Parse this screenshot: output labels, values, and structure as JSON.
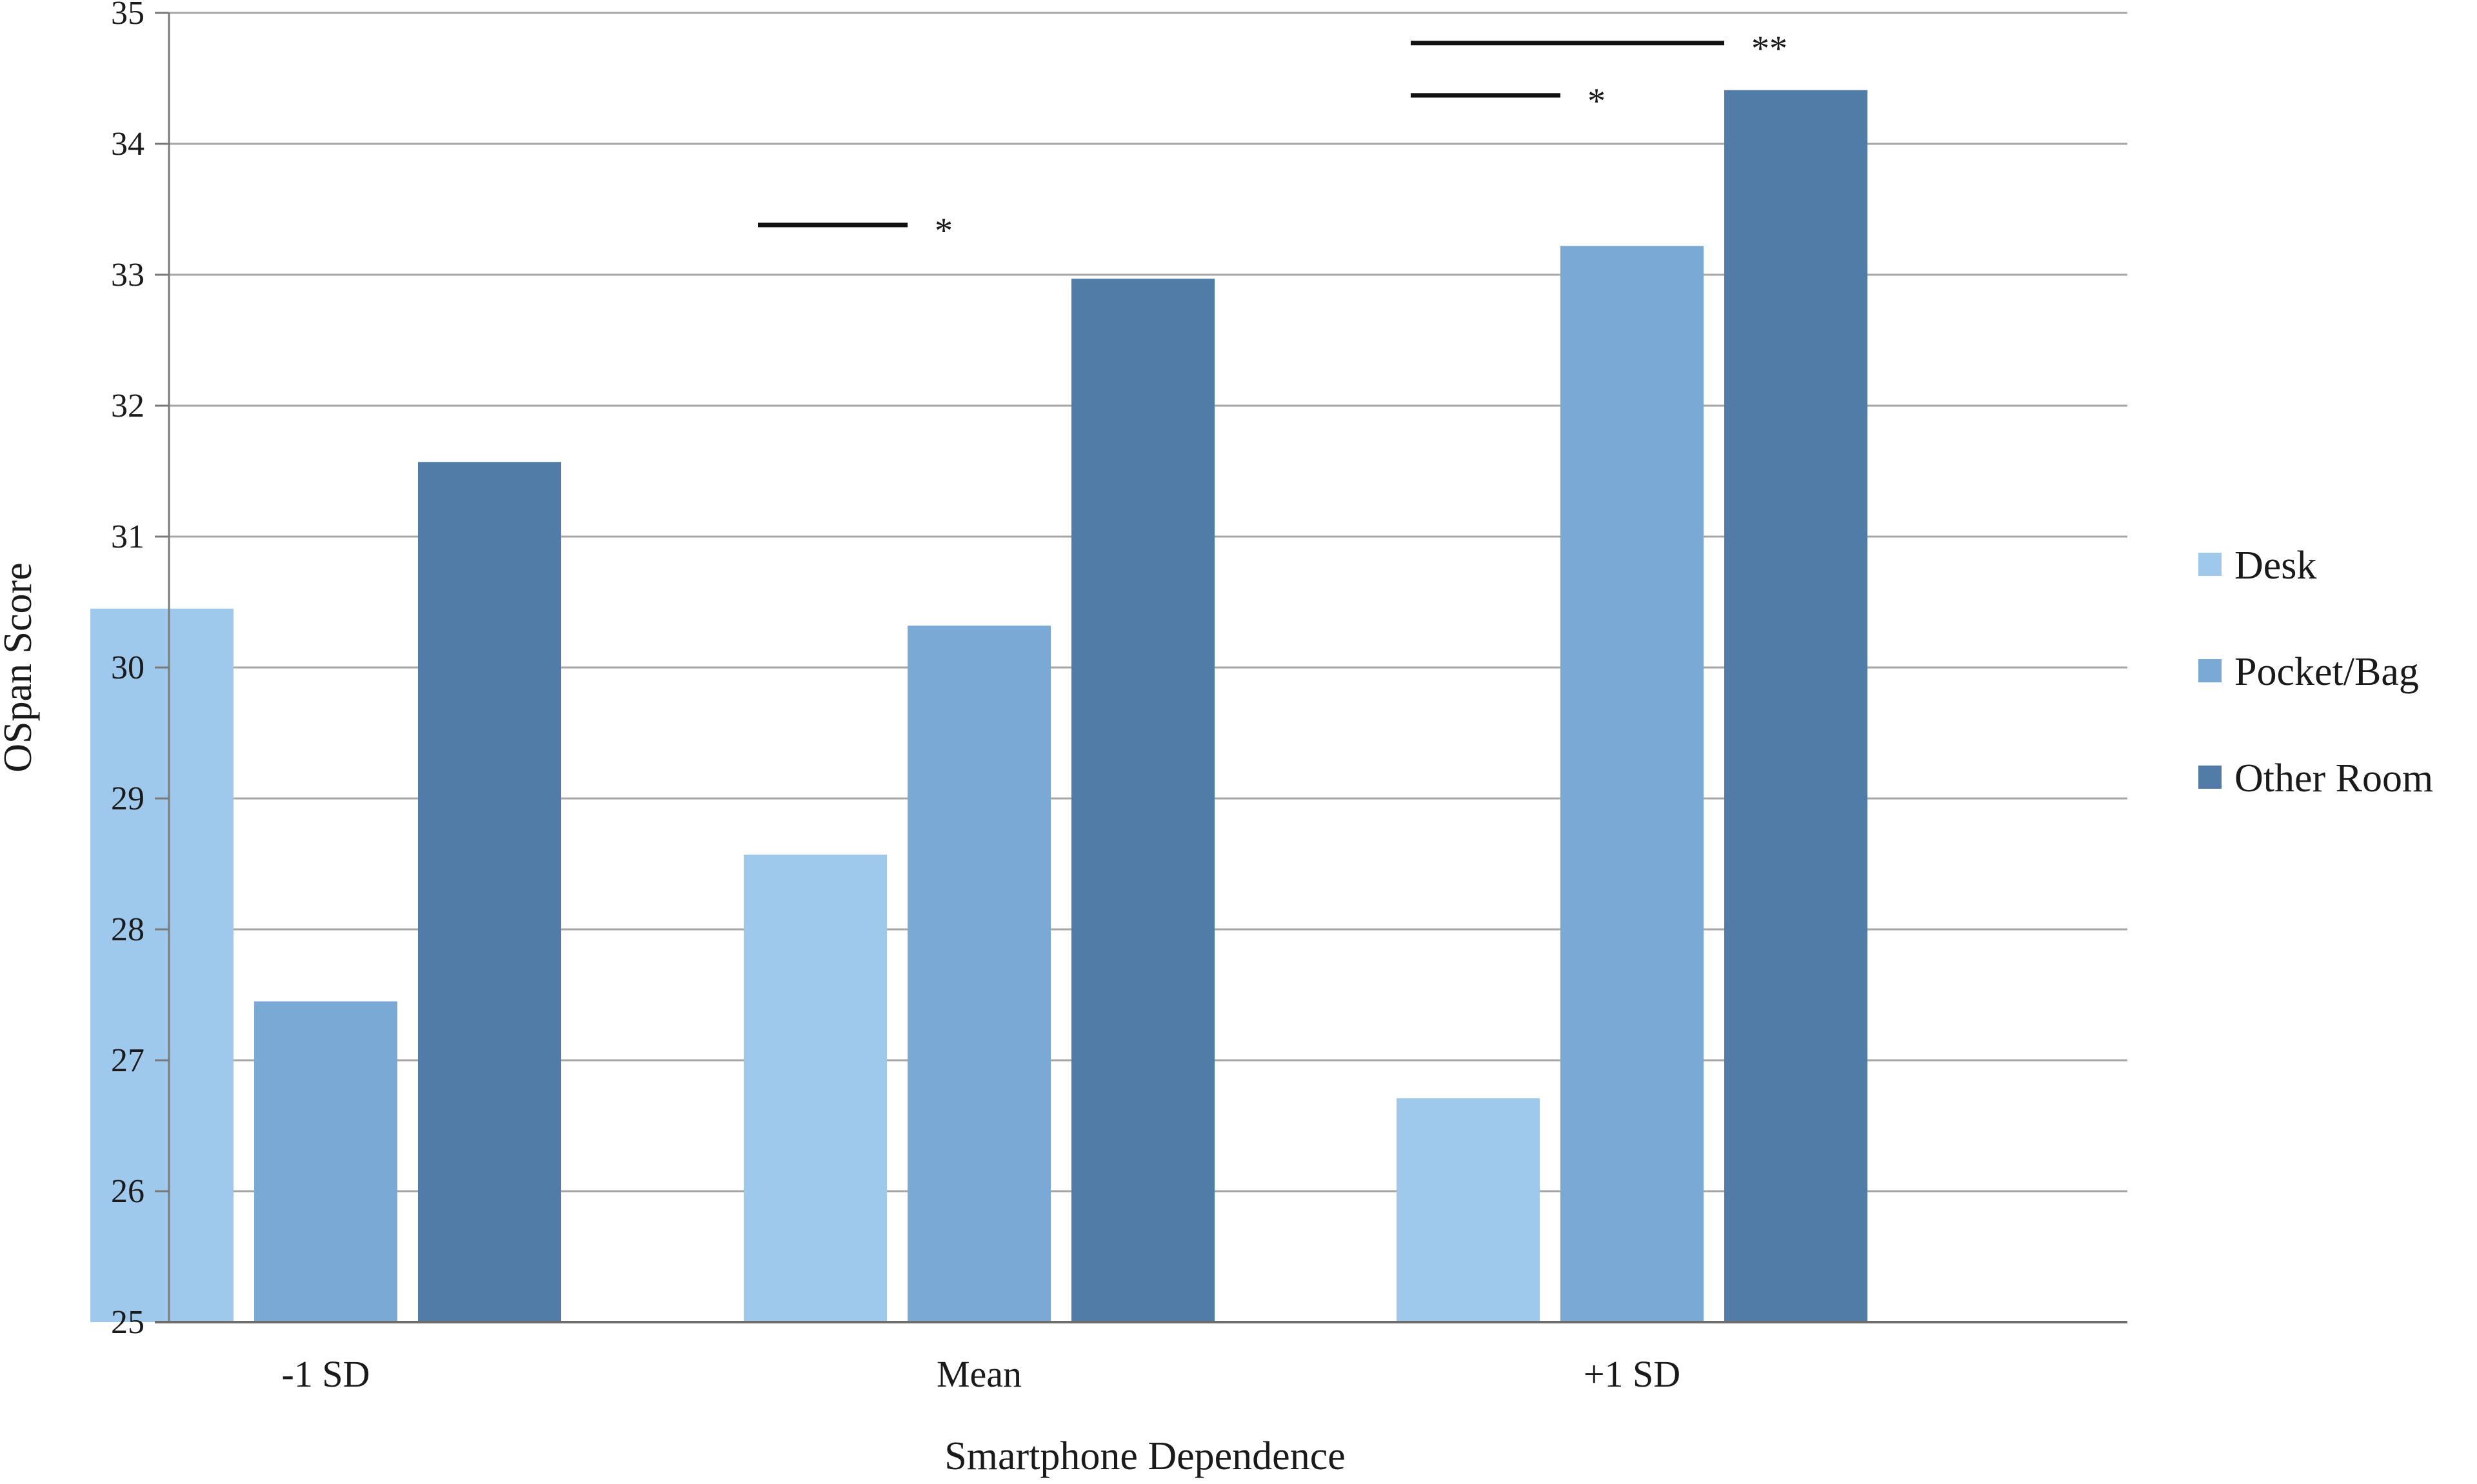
{
  "chart_data": {
    "type": "bar",
    "title": "",
    "xlabel": "Smartphone Dependence",
    "ylabel": "OSpan Score",
    "ylim": [
      25,
      35
    ],
    "yticks": [
      "25",
      "26",
      "27",
      "28",
      "29",
      "30",
      "31",
      "32",
      "33",
      "34",
      "35"
    ],
    "grid": true,
    "legend_position": "right",
    "categories": [
      "-1 SD",
      "Mean",
      "+1 SD"
    ],
    "series": [
      {
        "name": "Desk",
        "color": "#9fc9ec",
        "values": [
          30.45,
          28.57,
          26.71
        ]
      },
      {
        "name": "Pocket/Bag",
        "color": "#79a9d4",
        "values": [
          27.45,
          30.32,
          33.22
        ]
      },
      {
        "name": "Other Room",
        "color": "#517ca7",
        "values": [
          31.57,
          32.97,
          34.41
        ]
      }
    ],
    "significance": [
      {
        "category": "Mean",
        "from_series": "Desk",
        "to_series": "Pocket/Bag",
        "y": 33.38,
        "label": "*"
      },
      {
        "category": "+1 SD",
        "from_series": "Desk",
        "to_series": "Pocket/Bag",
        "y": 34.37,
        "label": "*"
      },
      {
        "category": "+1 SD",
        "from_series": "Desk",
        "to_series": "Other Room",
        "y": 34.77,
        "label": "**"
      }
    ]
  }
}
